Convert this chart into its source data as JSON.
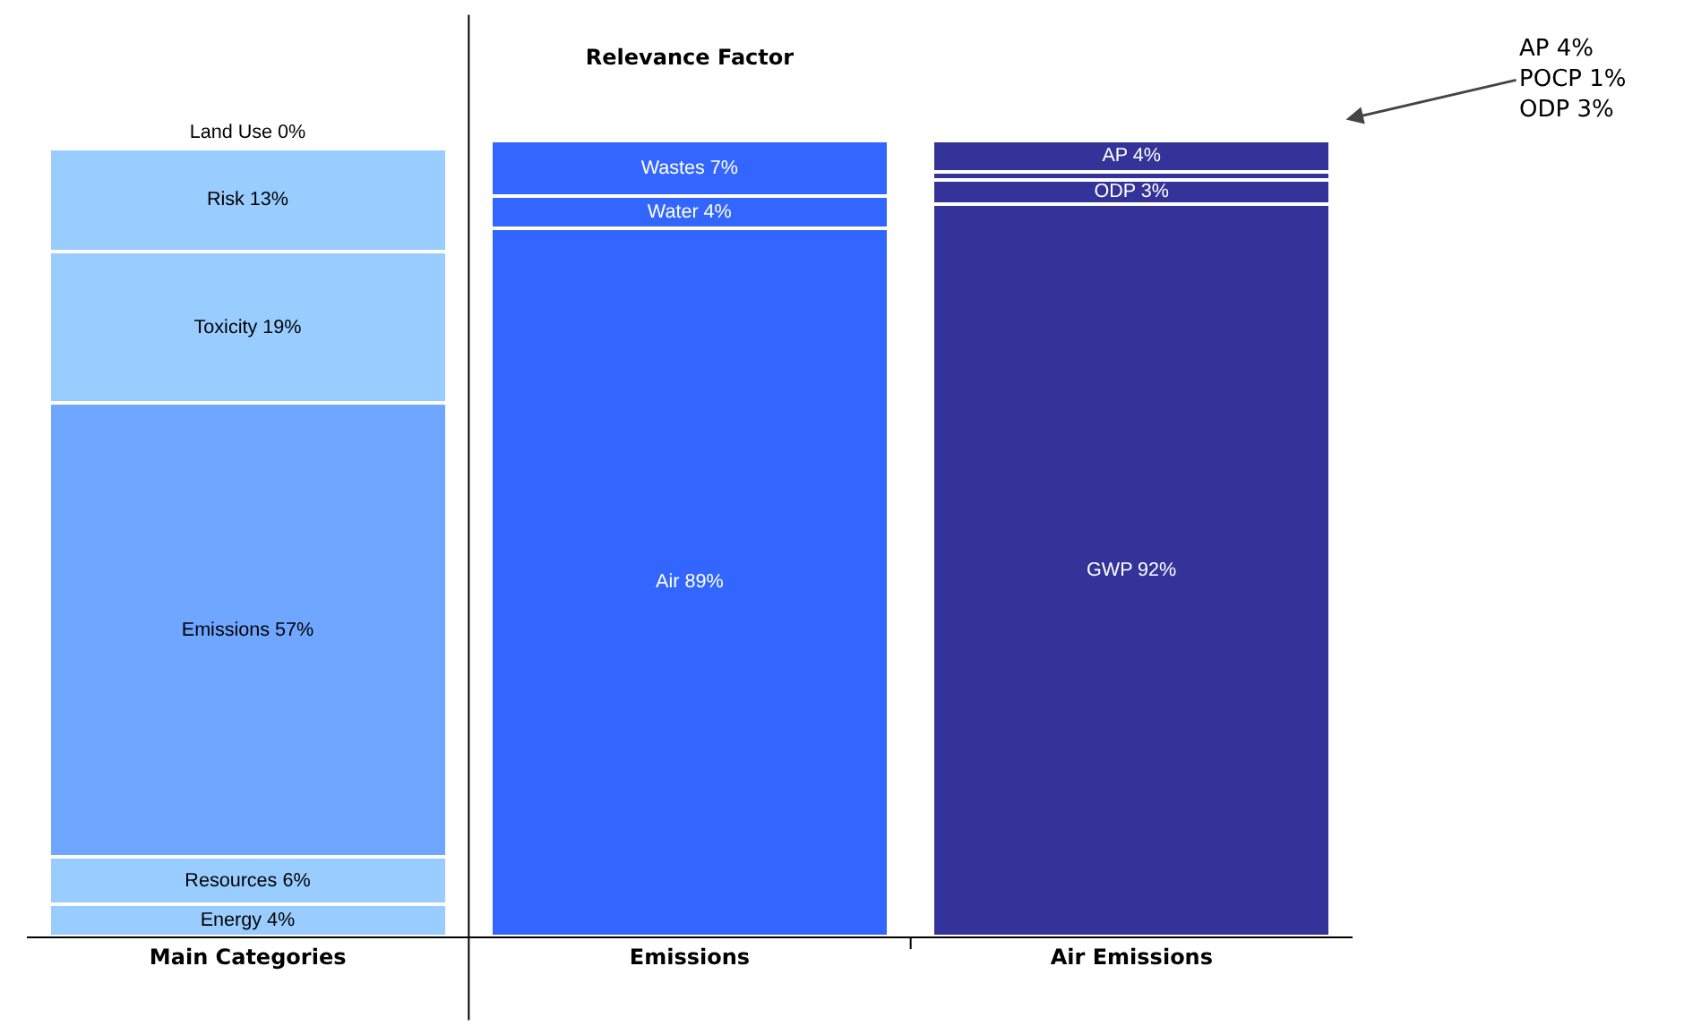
{
  "chart_data": {
    "type": "bar",
    "stacked": true,
    "title": "Relevance Factor",
    "categories": [
      "Main Categories",
      "Emissions",
      "Air Emissions"
    ],
    "series": [
      {
        "color": "#99ccff",
        "values": [
          4,
          null,
          null
        ],
        "value_labels": [
          "Energy 4%",
          null,
          null
        ]
      },
      {
        "color": "#99ccff",
        "values": [
          6,
          null,
          null
        ],
        "value_labels": [
          "Resources 6%",
          null,
          null
        ]
      },
      {
        "color": "#6fa6ff",
        "values": [
          57,
          null,
          null
        ],
        "value_labels": [
          "Emissions 57%",
          null,
          null
        ]
      },
      {
        "color": "#99ccff",
        "values": [
          19,
          null,
          null
        ],
        "value_labels": [
          "Toxicity 19%",
          null,
          null
        ]
      },
      {
        "color": "#99ccff",
        "values": [
          13,
          null,
          null
        ],
        "value_labels": [
          "Risk 13%",
          null,
          null
        ]
      },
      {
        "color": "#99ccff",
        "values": [
          0,
          null,
          null
        ],
        "value_labels": [
          "Land Use 0%",
          null,
          null
        ]
      },
      {
        "color": "#3366ff",
        "values": [
          null,
          89,
          null
        ],
        "value_labels": [
          null,
          "Air 89%",
          null
        ]
      },
      {
        "color": "#3366ff",
        "values": [
          null,
          4,
          null
        ],
        "value_labels": [
          null,
          "Water 4%",
          null
        ]
      },
      {
        "color": "#3366ff",
        "values": [
          null,
          7,
          null
        ],
        "value_labels": [
          null,
          "Wastes 7%",
          null
        ]
      },
      {
        "color": "#333399",
        "values": [
          null,
          null,
          92
        ],
        "value_labels": [
          null,
          null,
          "GWP 92%"
        ]
      },
      {
        "color": "#333399",
        "values": [
          null,
          null,
          3
        ],
        "value_labels": [
          null,
          null,
          "ODP 3%"
        ]
      },
      {
        "color": "#333399",
        "values": [
          null,
          null,
          1
        ],
        "value_labels": [
          null,
          null,
          null
        ]
      },
      {
        "color": "#333399",
        "values": [
          null,
          null,
          4
        ],
        "value_labels": [
          null,
          null,
          "AP 4%"
        ]
      }
    ],
    "annotations": [
      "AP 4%\nPOCP 1%\nODP 3%"
    ],
    "legend": false,
    "grid": false
  }
}
